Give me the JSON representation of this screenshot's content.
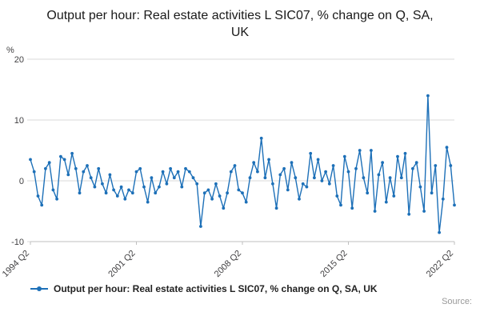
{
  "page": {
    "title": "Output per hour: Real estate activities L SIC07, % change on Q, SA, UK",
    "source_label": "Source:"
  },
  "legend": {
    "label": "Output per hour: Real estate activities L SIC07, % change on Q, SA, UK"
  },
  "chart_data": {
    "type": "line",
    "title": "Output per hour: Real estate activities L SIC07, % change on Q, SA, UK",
    "series_name": "Output per hour: Real estate activities L SIC07, % change on Q, SA, UK",
    "xlabel": "",
    "ylabel": "%",
    "ylim": [
      -10,
      20
    ],
    "yticks": [
      -10,
      0,
      10,
      20
    ],
    "grid": "horizontal",
    "legend_position": "bottom",
    "color": "#1d70b8",
    "marker": "circle",
    "frequency": "quarterly",
    "x_start": "1994 Q2",
    "x_end": "2022 Q2",
    "x_tick_labels": [
      "1994 Q2",
      "2001 Q2",
      "2008 Q2",
      "2015 Q2",
      "2022 Q2"
    ],
    "x_tick_indices": [
      0,
      28,
      56,
      84,
      112
    ],
    "values": [
      3.5,
      1.5,
      -2.5,
      -4,
      2,
      3,
      -1.5,
      -3,
      4,
      3.5,
      1,
      4.5,
      2,
      -2,
      1.5,
      2.5,
      0.5,
      -1,
      2,
      -0.5,
      -2,
      1,
      -1.5,
      -2.5,
      -1,
      -3,
      -1.5,
      -2,
      1.5,
      2,
      -1,
      -3.5,
      0.5,
      -2,
      -1,
      1.5,
      -0.5,
      2,
      0.5,
      1.5,
      -1,
      2,
      1.5,
      0.5,
      -0.5,
      -7.5,
      -2,
      -1.5,
      -3,
      -0.5,
      -2.5,
      -4.5,
      -2,
      1.5,
      2.5,
      -1.5,
      -2,
      -3.5,
      0.5,
      3,
      1.5,
      7,
      0.5,
      3.5,
      -0.5,
      -4.5,
      1,
      2,
      -1.5,
      3,
      0.5,
      -3,
      -0.5,
      -1,
      4.5,
      0.5,
      3.5,
      0,
      1.5,
      -0.5,
      2.5,
      -2.5,
      -4,
      4,
      1.5,
      -4.5,
      2,
      5,
      0.5,
      -2,
      5,
      -5,
      1,
      3,
      -3.5,
      0.5,
      -2.5,
      4,
      0.5,
      4.5,
      -5.5,
      2,
      3,
      -1,
      -5,
      14,
      -2,
      2.5,
      -8.5,
      -3,
      5.5,
      2.5,
      -4
    ]
  }
}
